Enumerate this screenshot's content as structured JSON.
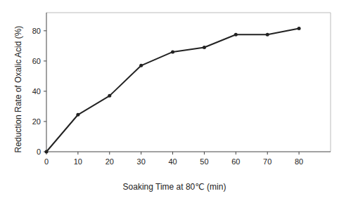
{
  "chart_data": {
    "type": "line",
    "x_label": "Soaking Time at 80℃ (min)",
    "y_label": "Reduction Rate of Oxalic Acid (%)",
    "x": [
      0,
      10,
      20,
      30,
      40,
      50,
      60,
      70,
      80
    ],
    "values": [
      0,
      24.5,
      37,
      57,
      66,
      69,
      77.5,
      77.5,
      81.5
    ],
    "color": "#222222",
    "marker": "circle",
    "xlim": [
      0,
      90
    ],
    "xticks": [
      0,
      10,
      20,
      30,
      40,
      50,
      60,
      70,
      80
    ],
    "ylim": [
      0,
      92
    ],
    "yticks": [
      0,
      20,
      40,
      60,
      80
    ],
    "grid": false
  }
}
